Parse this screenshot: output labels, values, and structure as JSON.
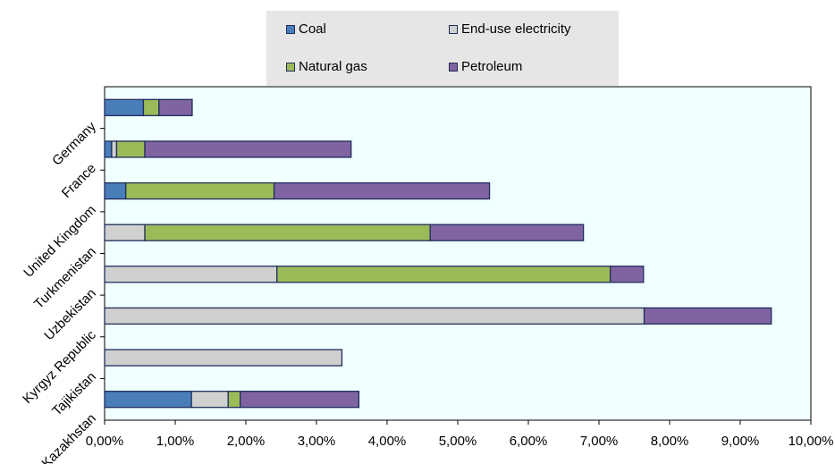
{
  "chart_data": {
    "type": "bar",
    "orientation": "horizontal",
    "stacked": true,
    "categories": [
      "Germany",
      "France",
      "United Kingdom",
      "Turkmenistan",
      "Uzbekistan",
      "Kyrgyz Republic",
      "Tajikistan",
      "Kazakhstan"
    ],
    "series": [
      {
        "name": "Coal",
        "color": "#4a7ebb",
        "values": [
          0.55,
          0.1,
          0.3,
          0.0,
          0.0,
          0.0,
          0.0,
          1.23
        ]
      },
      {
        "name": "End-use electricity",
        "color": "#d0d0d0",
        "values": [
          0.0,
          0.07,
          0.0,
          0.57,
          2.44,
          7.64,
          3.36,
          0.52
        ]
      },
      {
        "name": "Natural gas",
        "color": "#9bbb59",
        "values": [
          0.22,
          0.4,
          2.1,
          4.04,
          4.72,
          0.0,
          0.0,
          0.17
        ]
      },
      {
        "name": "Petroleum",
        "color": "#8064a2",
        "values": [
          0.47,
          2.92,
          3.05,
          2.17,
          0.47,
          1.8,
          0.0,
          1.68
        ]
      }
    ],
    "xlim": [
      0,
      10
    ],
    "xticks": [
      "0,00%",
      "1,00%",
      "2,00%",
      "3,00%",
      "4,00%",
      "5,00%",
      "6,00%",
      "7,00%",
      "8,00%",
      "9,00%",
      "10,00%"
    ],
    "xlabel": "",
    "ylabel": "",
    "grid": false,
    "legend_position": "top-center",
    "plot_background": "#f0ffff",
    "legend_background": "#e6e6e6"
  }
}
